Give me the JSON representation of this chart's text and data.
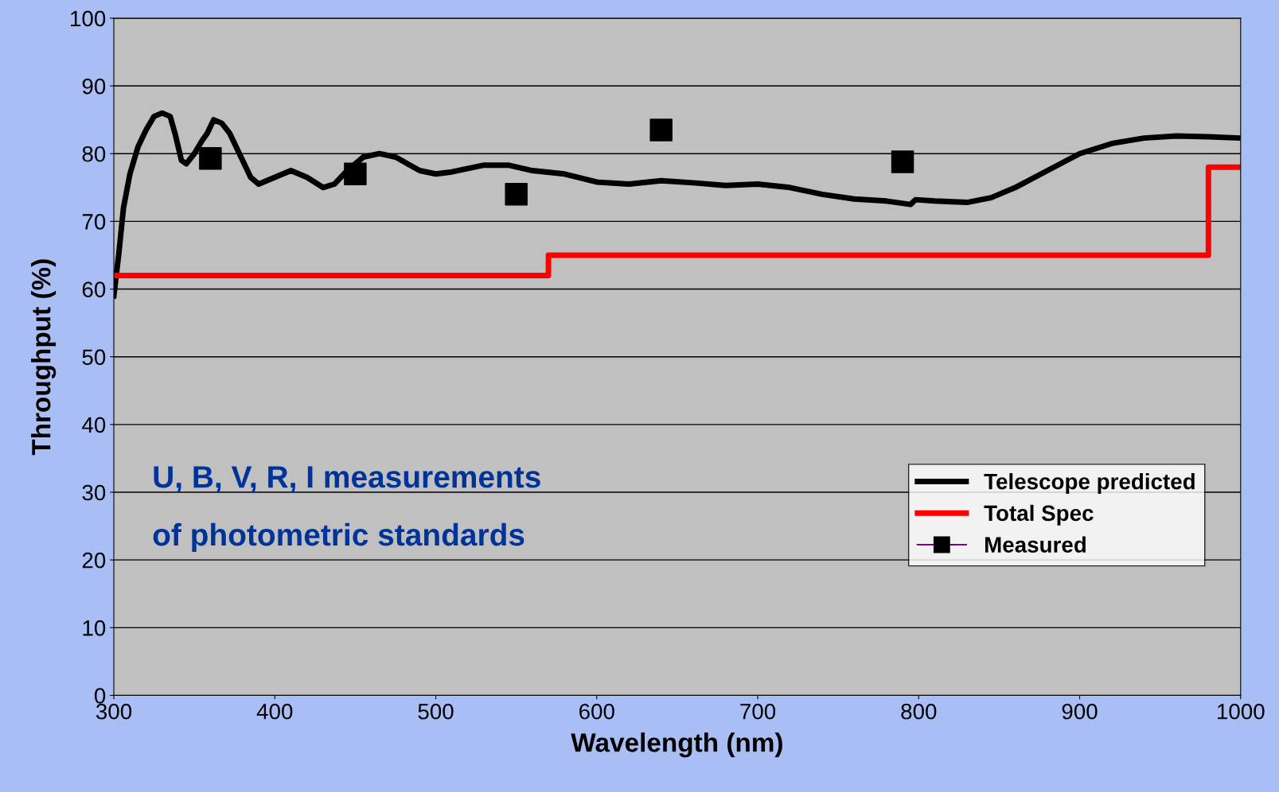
{
  "chart_data": {
    "type": "line",
    "xlabel": "Wavelength (nm)",
    "ylabel": "Throughput (%)",
    "xlim": [
      300,
      1000
    ],
    "xticks": [
      300,
      400,
      500,
      600,
      700,
      800,
      900,
      1000
    ],
    "ylim": [
      0,
      100
    ],
    "yticks": [
      0,
      10,
      20,
      30,
      40,
      50,
      60,
      70,
      80,
      90,
      100
    ],
    "grid": "y",
    "legend": "bottom right",
    "annotations": [
      "U, B, V, R, I measurements\nof photometric standards"
    ],
    "series": [
      {
        "name": "Telescope predicted",
        "color": "#000000",
        "marker": "none",
        "x": [
          300,
          303,
          306,
          310,
          315,
          320,
          325,
          330,
          335,
          338,
          342,
          345,
          350,
          355,
          358,
          362,
          367,
          372,
          378,
          385,
          390,
          400,
          410,
          420,
          430,
          437,
          445,
          455,
          465,
          475,
          490,
          500,
          510,
          530,
          545,
          560,
          580,
          600,
          620,
          640,
          660,
          680,
          700,
          720,
          740,
          760,
          780,
          795,
          798,
          810,
          830,
          845,
          860,
          880,
          900,
          920,
          940,
          960,
          980,
          1000
        ],
        "values": [
          59,
          65,
          72,
          77,
          81,
          83.5,
          85.5,
          86,
          85.5,
          83,
          79,
          78.5,
          80,
          82,
          83,
          85,
          84.5,
          83,
          80,
          76.5,
          75.5,
          76.5,
          77.5,
          76.5,
          75,
          75.5,
          77.5,
          79.5,
          80,
          79.5,
          77.5,
          77,
          77.3,
          78.3,
          78.3,
          77.5,
          77,
          75.8,
          75.5,
          76,
          75.7,
          75.3,
          75.5,
          75,
          74,
          73.3,
          73,
          72.5,
          73.2,
          73,
          72.8,
          73.5,
          75,
          77.5,
          80,
          81.5,
          82.3,
          82.6,
          82.5,
          82.3
        ]
      },
      {
        "name": "Total Spec",
        "type": "step",
        "color": "#ff0000",
        "marker": "none",
        "x": [
          300,
          570,
          980,
          1000
        ],
        "values": [
          62,
          65,
          78,
          78
        ]
      },
      {
        "name": "Measured",
        "type": "scatter",
        "color": "#000000",
        "marker": "square",
        "x": [
          360,
          450,
          550,
          640,
          790
        ],
        "values": [
          79.3,
          77,
          74,
          83.5,
          78.8
        ]
      }
    ]
  }
}
